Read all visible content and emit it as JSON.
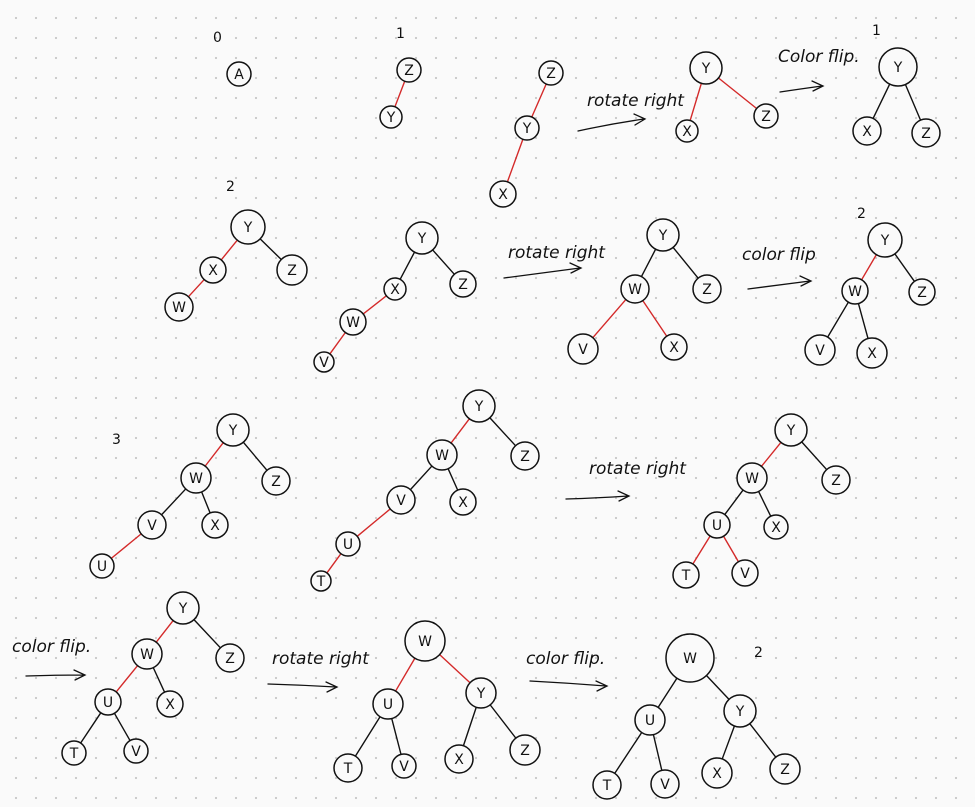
{
  "colors": {
    "ink": "#111111",
    "red_link": "#d42a2a",
    "paper": "#fafafa",
    "dot": "#c9c9c9"
  },
  "annotations": {
    "n0": "0",
    "n1a": "1",
    "n1b": "1",
    "n2a": "2",
    "n2b": "2",
    "n3": "3",
    "n2c": "2",
    "rotate_right": "rotate right",
    "rotate_right_alt": "rotate right",
    "rotate_right_alt2": "rotate right",
    "rotate_right_alt3": "rotate right",
    "color_flip_1": "Color flip.",
    "color_flip_2": "color flip",
    "color_flip_3": "color flip.",
    "color_flip_4": "color flip."
  },
  "trees": [
    {
      "nodes": [
        {
          "l": "A"
        }
      ],
      "edges": []
    },
    {
      "nodes": [
        {
          "l": "Z"
        },
        {
          "l": "Y"
        }
      ],
      "edges": [
        [
          0,
          1,
          "red"
        ]
      ]
    },
    {
      "nodes": [
        {
          "l": "Z"
        },
        {
          "l": "Y"
        },
        {
          "l": "X"
        }
      ],
      "edges": [
        [
          0,
          1,
          "red"
        ],
        [
          1,
          2,
          "red"
        ]
      ]
    },
    {
      "nodes": [
        {
          "l": "Y"
        },
        {
          "l": "X"
        },
        {
          "l": "Z"
        }
      ],
      "edges": [
        [
          0,
          1,
          "red"
        ],
        [
          0,
          2,
          "red"
        ]
      ]
    },
    {
      "nodes": [
        {
          "l": "Y"
        },
        {
          "l": "X"
        },
        {
          "l": "Z"
        }
      ],
      "edges": [
        [
          0,
          1,
          "black"
        ],
        [
          0,
          2,
          "black"
        ]
      ]
    },
    {
      "nodes": [
        {
          "l": "Y"
        },
        {
          "l": "X"
        },
        {
          "l": "Z"
        },
        {
          "l": "W"
        }
      ],
      "edges": [
        [
          0,
          1,
          "red"
        ],
        [
          0,
          2,
          "black"
        ],
        [
          1,
          3,
          "red"
        ]
      ]
    },
    {
      "nodes": [
        {
          "l": "Y"
        },
        {
          "l": "X"
        },
        {
          "l": "Z"
        },
        {
          "l": "W"
        },
        {
          "l": "V"
        }
      ],
      "edges": [
        [
          0,
          1,
          "black"
        ],
        [
          0,
          2,
          "black"
        ],
        [
          1,
          3,
          "red"
        ],
        [
          3,
          4,
          "red"
        ]
      ]
    },
    {
      "nodes": [
        {
          "l": "Y"
        },
        {
          "l": "W"
        },
        {
          "l": "Z"
        },
        {
          "l": "V"
        },
        {
          "l": "X"
        }
      ],
      "edges": [
        [
          0,
          1,
          "black"
        ],
        [
          0,
          2,
          "black"
        ],
        [
          1,
          3,
          "red"
        ],
        [
          1,
          4,
          "red"
        ]
      ]
    },
    {
      "nodes": [
        {
          "l": "Y"
        },
        {
          "l": "W"
        },
        {
          "l": "Z"
        },
        {
          "l": "V"
        },
        {
          "l": "X"
        }
      ],
      "edges": [
        [
          0,
          1,
          "red"
        ],
        [
          0,
          2,
          "black"
        ],
        [
          1,
          3,
          "black"
        ],
        [
          1,
          4,
          "black"
        ]
      ]
    },
    {
      "nodes": [
        {
          "l": "Y"
        },
        {
          "l": "W"
        },
        {
          "l": "Z"
        },
        {
          "l": "V"
        },
        {
          "l": "X"
        },
        {
          "l": "U"
        }
      ],
      "edges": [
        [
          0,
          1,
          "red"
        ],
        [
          0,
          2,
          "black"
        ],
        [
          1,
          3,
          "black"
        ],
        [
          1,
          4,
          "black"
        ],
        [
          3,
          5,
          "red"
        ]
      ]
    },
    {
      "nodes": [
        {
          "l": "Y"
        },
        {
          "l": "W"
        },
        {
          "l": "Z"
        },
        {
          "l": "V"
        },
        {
          "l": "X"
        },
        {
          "l": "U"
        },
        {
          "l": "T"
        }
      ],
      "edges": [
        [
          0,
          1,
          "red"
        ],
        [
          0,
          2,
          "black"
        ],
        [
          1,
          3,
          "black"
        ],
        [
          1,
          4,
          "black"
        ],
        [
          3,
          5,
          "red"
        ],
        [
          5,
          6,
          "red"
        ]
      ]
    },
    {
      "nodes": [
        {
          "l": "Y"
        },
        {
          "l": "W"
        },
        {
          "l": "Z"
        },
        {
          "l": "U"
        },
        {
          "l": "X"
        },
        {
          "l": "T"
        },
        {
          "l": "V"
        }
      ],
      "edges": [
        [
          0,
          1,
          "red"
        ],
        [
          0,
          2,
          "black"
        ],
        [
          1,
          3,
          "black"
        ],
        [
          1,
          4,
          "black"
        ],
        [
          3,
          5,
          "red"
        ],
        [
          3,
          6,
          "red"
        ]
      ]
    },
    {
      "nodes": [
        {
          "l": "Y"
        },
        {
          "l": "W"
        },
        {
          "l": "Z"
        },
        {
          "l": "U"
        },
        {
          "l": "X"
        },
        {
          "l": "T"
        },
        {
          "l": "V"
        }
      ],
      "edges": [
        [
          0,
          1,
          "red"
        ],
        [
          0,
          2,
          "black"
        ],
        [
          1,
          3,
          "red"
        ],
        [
          1,
          4,
          "black"
        ],
        [
          3,
          5,
          "black"
        ],
        [
          3,
          6,
          "black"
        ]
      ]
    },
    {
      "nodes": [
        {
          "l": "W"
        },
        {
          "l": "U"
        },
        {
          "l": "Y"
        },
        {
          "l": "T"
        },
        {
          "l": "V"
        },
        {
          "l": "X"
        },
        {
          "l": "Z"
        }
      ],
      "edges": [
        [
          0,
          1,
          "red"
        ],
        [
          0,
          2,
          "red"
        ],
        [
          1,
          3,
          "black"
        ],
        [
          1,
          4,
          "black"
        ],
        [
          2,
          5,
          "black"
        ],
        [
          2,
          6,
          "black"
        ]
      ]
    },
    {
      "nodes": [
        {
          "l": "W"
        },
        {
          "l": "U"
        },
        {
          "l": "Y"
        },
        {
          "l": "T"
        },
        {
          "l": "V"
        },
        {
          "l": "X"
        },
        {
          "l": "Z"
        }
      ],
      "edges": [
        [
          0,
          1,
          "black"
        ],
        [
          0,
          2,
          "black"
        ],
        [
          1,
          3,
          "black"
        ],
        [
          1,
          4,
          "black"
        ],
        [
          2,
          5,
          "black"
        ],
        [
          2,
          6,
          "black"
        ]
      ]
    }
  ]
}
